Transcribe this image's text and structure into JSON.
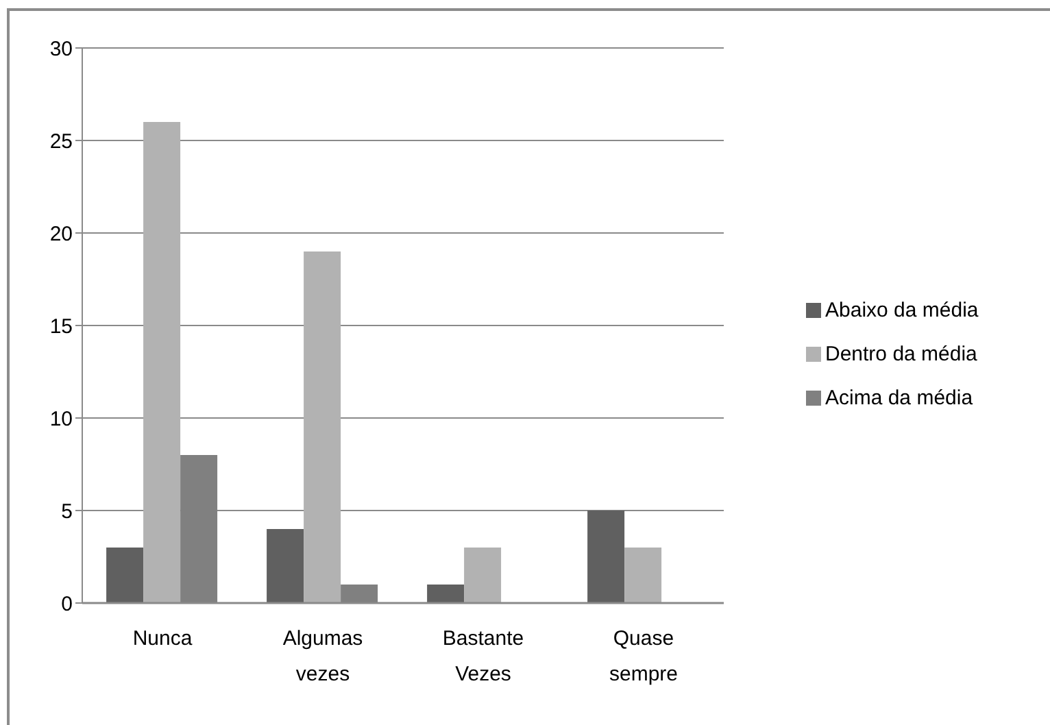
{
  "chart_data": {
    "type": "bar",
    "categories": [
      "Nunca",
      "Algumas vezes",
      "Bastante Vezes",
      "Quase sempre"
    ],
    "series": [
      {
        "name": "Abaixo da média",
        "color": "#606060",
        "values": [
          3,
          4,
          1,
          5
        ]
      },
      {
        "name": "Dentro da média",
        "color": "#b2b2b2",
        "values": [
          26,
          19,
          3,
          3
        ]
      },
      {
        "name": "Acima da média",
        "color": "#808080",
        "values": [
          8,
          1,
          0,
          0
        ]
      }
    ],
    "ylim": [
      0,
      30
    ],
    "yticks": [
      0,
      5,
      10,
      15,
      20,
      25,
      30
    ],
    "grid": "y",
    "legend": "right"
  }
}
